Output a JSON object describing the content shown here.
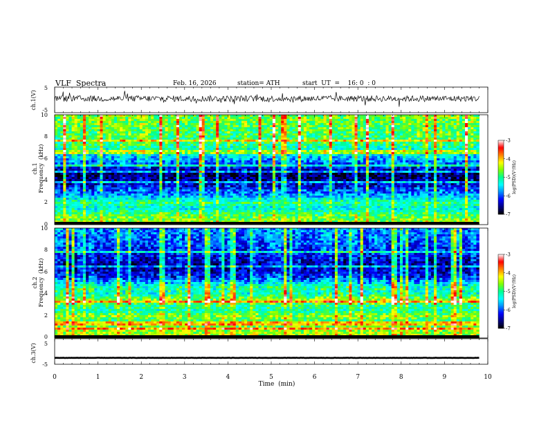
{
  "header": {
    "title": "VLF  Spectra",
    "date": "Feb. 16, 2026",
    "station": "station= ATH",
    "start": "start  UT  =    16: 0  : 0"
  },
  "chart_data": [
    {
      "type": "line",
      "name": "ch1-waveform",
      "ylabel": "ch.1(V)",
      "ylim": [
        -5,
        5
      ],
      "yticks": [
        "5",
        "-5"
      ],
      "x_unit": "min",
      "xlim": [
        0,
        10
      ],
      "data_until": 9.8,
      "trace": {
        "baseline": 0.5,
        "noise_amplitude": 1.2
      }
    },
    {
      "type": "heatmap",
      "name": "ch1-spectrogram",
      "ylabel": "ch.1\nFrequency  (kHz)",
      "ylim": [
        0,
        10
      ],
      "yticks": [
        "0",
        "2",
        "4",
        "6",
        "8",
        "10"
      ],
      "x_unit": "min",
      "xlim": [
        0,
        10
      ],
      "data_until": 9.8,
      "psd_profile_log": [
        {
          "f": 0.2,
          "v": -4.6
        },
        {
          "f": 0.8,
          "v": -4.8
        },
        {
          "f": 1.5,
          "v": -5.4
        },
        {
          "f": 2.0,
          "v": -5.0
        },
        {
          "f": 2.5,
          "v": -5.6
        },
        {
          "f": 3.0,
          "v": -6.0
        },
        {
          "f": 3.5,
          "v": -6.3
        },
        {
          "f": 4.0,
          "v": -6.6
        },
        {
          "f": 4.6,
          "v": -6.8
        },
        {
          "f": 5.5,
          "v": -6.0
        },
        {
          "f": 6.5,
          "v": -5.4
        },
        {
          "f": 7.5,
          "v": -5.0
        },
        {
          "f": 9.0,
          "v": -4.8
        },
        {
          "f": 10.0,
          "v": -4.7
        }
      ]
    },
    {
      "type": "heatmap",
      "name": "ch2-spectrogram",
      "ylabel": "ch.2\nFrequency  (kHz)",
      "ylim": [
        0,
        10
      ],
      "yticks": [
        "0",
        "2",
        "4",
        "6",
        "8",
        "10"
      ],
      "x_unit": "min",
      "xlim": [
        0,
        10
      ],
      "data_until": 9.8,
      "psd_profile_log": [
        {
          "f": 0.2,
          "v": -4.5
        },
        {
          "f": 0.8,
          "v": -4.6
        },
        {
          "f": 1.5,
          "v": -5.0
        },
        {
          "f": 2.0,
          "v": -4.6
        },
        {
          "f": 2.5,
          "v": -5.2
        },
        {
          "f": 3.0,
          "v": -5.0
        },
        {
          "f": 3.5,
          "v": -4.6
        },
        {
          "f": 4.0,
          "v": -5.3
        },
        {
          "f": 4.6,
          "v": -5.2
        },
        {
          "f": 5.5,
          "v": -6.2
        },
        {
          "f": 6.5,
          "v": -6.6
        },
        {
          "f": 7.5,
          "v": -6.3
        },
        {
          "f": 9.0,
          "v": -6.0
        },
        {
          "f": 10.0,
          "v": -5.9
        }
      ]
    },
    {
      "type": "line",
      "name": "ch3-waveform",
      "ylabel": "ch.3(V)",
      "ylim": [
        -5,
        5
      ],
      "yticks": [
        "5",
        "-5"
      ],
      "xlabel": "Time  (min)",
      "xlim": [
        0,
        10
      ],
      "xticks": [
        "0",
        "1",
        "2",
        "3",
        "4",
        "5",
        "6",
        "7",
        "8",
        "9",
        "10"
      ],
      "data_until": 9.8,
      "trace": {
        "baseline": -2.5,
        "noise_amplitude": 0.05
      }
    }
  ],
  "colorbar": {
    "label": "log(PSD)(V²/Hz)",
    "range": [
      -7,
      -3
    ],
    "ticks": [
      "-3",
      "-4",
      "-5",
      "-6",
      "-7"
    ],
    "colormap": [
      "#000000",
      "#000080",
      "#0000ff",
      "#0090ff",
      "#00ffff",
      "#00ff90",
      "#80ff00",
      "#ffff00",
      "#ff8000",
      "#ff0000",
      "#ffffff"
    ]
  }
}
